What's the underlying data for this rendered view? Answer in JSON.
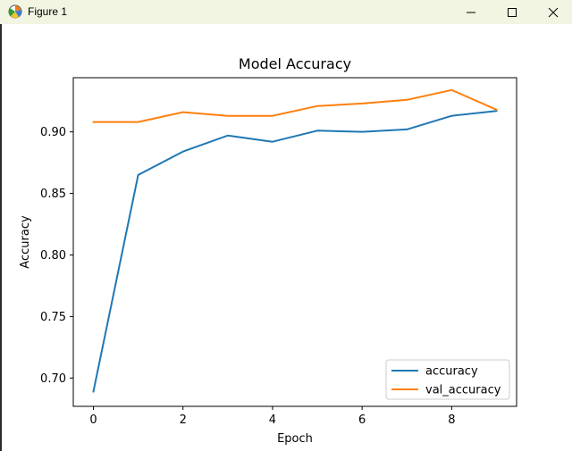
{
  "window": {
    "title": "Figure 1",
    "icons": {
      "app": "matplotlib-figure-icon",
      "minimize": "minimize-icon",
      "maximize": "maximize-icon",
      "close": "close-icon"
    }
  },
  "chart_data": {
    "type": "line",
    "title": "Model Accuracy",
    "xlabel": "Epoch",
    "ylabel": "Accuracy",
    "x": [
      0,
      1,
      2,
      3,
      4,
      5,
      6,
      7,
      8,
      9
    ],
    "xlim": [
      -0.45,
      9.45
    ],
    "ylim": [
      0.677,
      0.944
    ],
    "xticks": [
      0,
      2,
      4,
      6,
      8
    ],
    "xtick_labels": [
      "0",
      "2",
      "4",
      "6",
      "8"
    ],
    "yticks": [
      0.7,
      0.75,
      0.8,
      0.85,
      0.9
    ],
    "ytick_labels": [
      "0.70",
      "0.75",
      "0.80",
      "0.85",
      "0.90"
    ],
    "series": [
      {
        "name": "accuracy",
        "color": "#1f77b4",
        "values": [
          0.689,
          0.865,
          0.884,
          0.897,
          0.892,
          0.901,
          0.9,
          0.902,
          0.913,
          0.917
        ]
      },
      {
        "name": "val_accuracy",
        "color": "#ff7f0e",
        "values": [
          0.908,
          0.908,
          0.916,
          0.913,
          0.913,
          0.921,
          0.923,
          0.926,
          0.934,
          0.918
        ]
      }
    ],
    "legend": "lower-right",
    "grid": false
  }
}
